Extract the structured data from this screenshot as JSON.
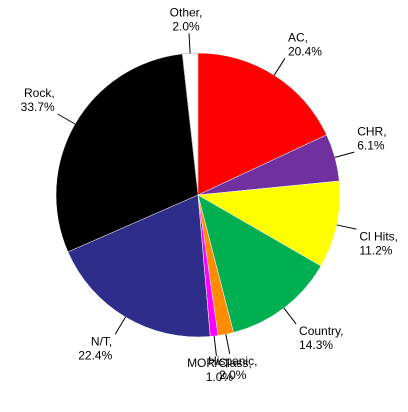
{
  "chart_data": {
    "type": "pie",
    "categories": [
      "AC,",
      "CHR,",
      "Cl Hits,",
      "Country,",
      "Hispanic,",
      "MOR/Class,",
      "N/T,",
      "Rock,",
      "Other,"
    ],
    "values": [
      20.4,
      6.1,
      11.2,
      14.3,
      2.0,
      1.0,
      22.4,
      33.7,
      2.0
    ],
    "value_labels": [
      "20.4%",
      "6.1%",
      "11.2%",
      "14.3%",
      "2.0%",
      "1.0%",
      "22.4%",
      "33.7%",
      "2.0%"
    ],
    "colors": [
      "#ff0000",
      "#7030a0",
      "#ffff00",
      "#00b050",
      "#ff8c00",
      "#ff00ff",
      "#2e2e8a",
      "#000000",
      "#ffffff"
    ]
  }
}
